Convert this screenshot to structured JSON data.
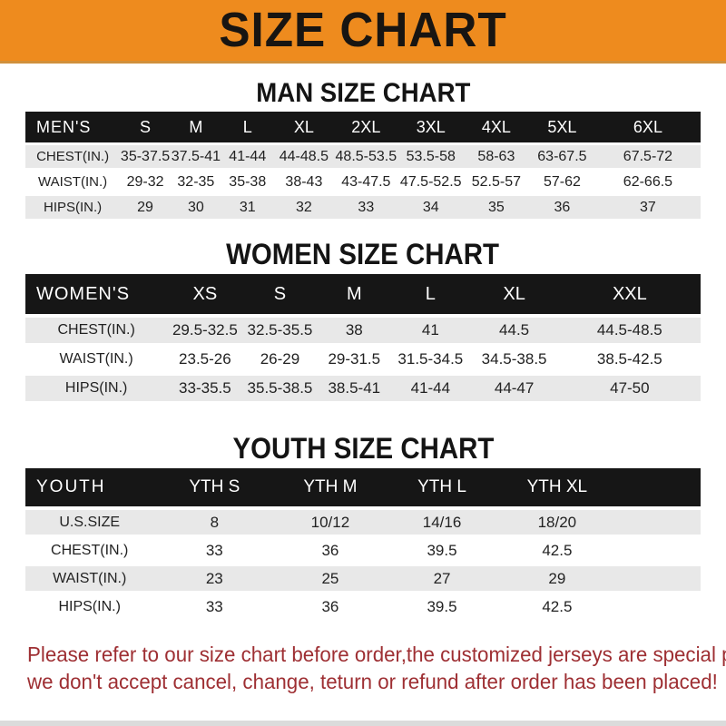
{
  "banner": {
    "title": "SIZE CHART"
  },
  "colors": {
    "banner_orange": "#EE8B1E",
    "header_band_black": "#161616",
    "row_gray": "#E8E8E8",
    "footer_red": "#9E2F33"
  },
  "sections": {
    "man": {
      "title": "MAN SIZE CHART"
    },
    "women": {
      "title": "WOMEN SIZE CHART"
    },
    "youth": {
      "title": "YOUTH SIZE CHART"
    }
  },
  "tables": {
    "men": {
      "header": [
        "MEN'S",
        "S",
        "M",
        "L",
        "XL",
        "2XL",
        "3XL",
        "4XL",
        "5XL",
        "6XL"
      ],
      "rows": [
        [
          "CHEST(IN.)",
          "35-37.5",
          "37.5-41",
          "41-44",
          "44-48.5",
          "48.5-53.5",
          "53.5-58",
          "58-63",
          "63-67.5",
          "67.5-72"
        ],
        [
          "WAIST(IN.)",
          "29-32",
          "32-35",
          "35-38",
          "38-43",
          "43-47.5",
          "47.5-52.5",
          "52.5-57",
          "57-62",
          "62-66.5"
        ],
        [
          "HIPS(IN.)",
          "29",
          "30",
          "31",
          "32",
          "33",
          "34",
          "35",
          "36",
          "37"
        ]
      ]
    },
    "women": {
      "header": [
        "WOMEN'S",
        "XS",
        "S",
        "M",
        "L",
        "XL",
        "XXL"
      ],
      "rows": [
        [
          "CHEST(IN.)",
          "29.5-32.5",
          "32.5-35.5",
          "38",
          "41",
          "44.5",
          "44.5-48.5"
        ],
        [
          "WAIST(IN.)",
          "23.5-26",
          "26-29",
          "29-31.5",
          "31.5-34.5",
          "34.5-38.5",
          "38.5-42.5"
        ],
        [
          "HIPS(IN.)",
          "33-35.5",
          "35.5-38.5",
          "38.5-41",
          "41-44",
          "44-47",
          "47-50"
        ]
      ]
    },
    "youth": {
      "header": [
        "YOUTH",
        "YTH S",
        "YTH M",
        "YTH L",
        "YTH XL"
      ],
      "rows": [
        [
          "U.S.SIZE",
          "8",
          "10/12",
          "14/16",
          "18/20"
        ],
        [
          "CHEST(IN.)",
          "33",
          "36",
          "39.5",
          "42.5"
        ],
        [
          "WAIST(IN.)",
          "23",
          "25",
          "27",
          "29"
        ],
        [
          "HIPS(IN.)",
          "33",
          "36",
          "39.5",
          "42.5"
        ]
      ]
    }
  },
  "footer": {
    "line1": "Please refer to our size chart before order,the customized jerseys are special products,",
    "line2": "we don't accept cancel, change, teturn or refund after order has been placed!"
  }
}
